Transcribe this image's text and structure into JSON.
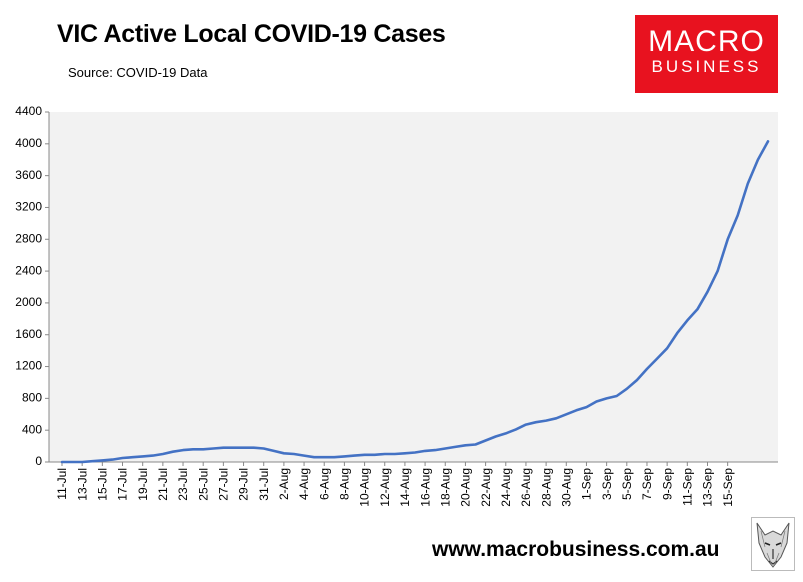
{
  "header": {
    "title": "VIC Active Local COVID-19 Cases",
    "subtitle": "Source: COVID-19 Data"
  },
  "logo": {
    "line1": "MACRO",
    "line2": "BUSINESS",
    "color": "#e8121f"
  },
  "footer": {
    "url": "www.macrobusiness.com.au",
    "mascot_icon": "wolf-icon"
  },
  "chart_data": {
    "type": "line",
    "title": "VIC Active Local COVID-19 Cases",
    "xlabel": "",
    "ylabel": "",
    "ylim": [
      0,
      4400
    ],
    "yticks": [
      0,
      400,
      800,
      1200,
      1600,
      2000,
      2400,
      2800,
      3200,
      3600,
      4000,
      4400
    ],
    "xtick_labels": [
      "11-Jul",
      "13-Jul",
      "15-Jul",
      "17-Jul",
      "19-Jul",
      "21-Jul",
      "23-Jul",
      "25-Jul",
      "27-Jul",
      "29-Jul",
      "31-Jul",
      "2-Aug",
      "4-Aug",
      "6-Aug",
      "8-Aug",
      "10-Aug",
      "12-Aug",
      "14-Aug",
      "16-Aug",
      "18-Aug",
      "20-Aug",
      "22-Aug",
      "24-Aug",
      "26-Aug",
      "28-Aug",
      "30-Aug",
      "1-Sep",
      "3-Sep",
      "5-Sep",
      "7-Sep",
      "9-Sep",
      "11-Sep",
      "13-Sep",
      "15-Sep"
    ],
    "grid": false,
    "line_color": "#4472c4",
    "plot_background": "#f2f2f2",
    "series": [
      {
        "values": [
          0,
          0,
          0,
          10,
          20,
          30,
          50,
          60,
          70,
          80,
          100,
          130,
          150,
          160,
          160,
          170,
          180,
          180,
          180,
          180,
          170,
          140,
          110,
          100,
          80,
          60,
          60,
          60,
          70,
          80,
          90,
          90,
          100,
          100,
          110,
          120,
          140,
          150,
          170,
          190,
          210,
          220,
          270,
          320,
          360,
          410,
          470,
          500,
          520,
          550,
          600,
          650,
          690,
          760,
          800,
          830,
          920,
          1030,
          1170,
          1300,
          1430,
          1620,
          1780,
          1920,
          2140,
          2400,
          2800,
          3100,
          3500,
          3800,
          4030
        ]
      }
    ]
  }
}
